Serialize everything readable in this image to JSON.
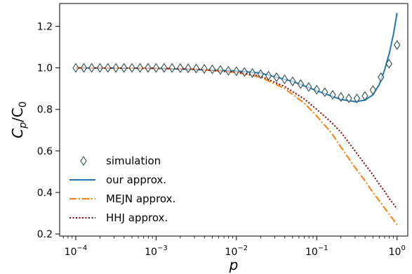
{
  "chart_data": {
    "type": "line",
    "xscale": "log",
    "xlim": [
      6.3e-05,
      1.36
    ],
    "ylim": [
      0.19,
      1.31
    ],
    "xlabel": "p",
    "ylabel_main": "C",
    "ylabel_sub1": "p",
    "ylabel_mid": "/C",
    "ylabel_sub2": "0",
    "x_ticks": [
      {
        "value": 0.0001,
        "base": "10",
        "exp": "−4"
      },
      {
        "value": 0.001,
        "base": "10",
        "exp": "−3"
      },
      {
        "value": 0.01,
        "base": "10",
        "exp": "−2"
      },
      {
        "value": 0.1,
        "base": "10",
        "exp": "−1"
      },
      {
        "value": 1,
        "base": "10",
        "exp": "0"
      }
    ],
    "y_ticks": [
      {
        "value": 0.2,
        "label": "0.2"
      },
      {
        "value": 0.4,
        "label": "0.4"
      },
      {
        "value": 0.6,
        "label": "0.6"
      },
      {
        "value": 0.8,
        "label": "0.8"
      },
      {
        "value": 1.0,
        "label": "1.0"
      },
      {
        "value": 1.2,
        "label": "1.2"
      }
    ],
    "legend_position": "lower-left",
    "series": [
      {
        "name": "simulation",
        "style": "diamond-markers",
        "color": "#2f4f4f",
        "x": [
          0.0001,
          0.000126,
          0.000158,
          0.0002,
          0.000251,
          0.000316,
          0.000398,
          0.000501,
          0.000631,
          0.000794,
          0.001,
          0.00126,
          0.00158,
          0.002,
          0.00251,
          0.00316,
          0.00398,
          0.00501,
          0.00631,
          0.00794,
          0.01,
          0.0126,
          0.0158,
          0.02,
          0.0251,
          0.0316,
          0.0398,
          0.0501,
          0.0631,
          0.0794,
          0.1,
          0.126,
          0.158,
          0.2,
          0.251,
          0.316,
          0.398,
          0.501,
          0.631,
          0.794,
          1.0
        ],
        "y": [
          1.0,
          1.0,
          1.0,
          1.0,
          1.0,
          1.0,
          1.0,
          1.0,
          1.0,
          1.0,
          1.0,
          1.0,
          1.0,
          0.999,
          0.998,
          0.997,
          0.995,
          0.993,
          0.99,
          0.986,
          0.984,
          0.98,
          0.975,
          0.97,
          0.962,
          0.955,
          0.945,
          0.935,
          0.922,
          0.908,
          0.895,
          0.883,
          0.87,
          0.86,
          0.853,
          0.853,
          0.865,
          0.893,
          0.955,
          1.02,
          1.11
        ]
      },
      {
        "name": "our approx.",
        "style": "solid",
        "color": "#1f77b4",
        "x": [
          0.0001,
          0.001,
          0.01,
          0.02,
          0.05,
          0.1,
          0.2,
          0.3,
          0.4,
          0.5,
          0.6,
          0.7,
          0.8,
          0.9,
          1.0
        ],
        "y": [
          1.0,
          0.998,
          0.985,
          0.975,
          0.935,
          0.89,
          0.848,
          0.837,
          0.845,
          0.87,
          0.92,
          0.99,
          1.07,
          1.16,
          1.265
        ]
      },
      {
        "name": "MEJN approx.",
        "style": "dashdot",
        "color": "#ff7f0e",
        "x": [
          0.0001,
          0.001,
          0.003,
          0.01,
          0.02,
          0.04,
          0.07,
          0.1,
          0.15,
          0.2,
          0.3,
          0.4,
          0.5,
          0.6,
          0.7,
          0.8,
          0.9,
          1.0
        ],
        "y": [
          1.0,
          0.998,
          0.994,
          0.978,
          0.955,
          0.9,
          0.83,
          0.768,
          0.69,
          0.618,
          0.52,
          0.455,
          0.4,
          0.36,
          0.325,
          0.295,
          0.268,
          0.245
        ]
      },
      {
        "name": "HHJ approx.",
        "style": "dotted",
        "color": "#8b0000",
        "x": [
          0.0001,
          0.001,
          0.003,
          0.01,
          0.02,
          0.04,
          0.07,
          0.1,
          0.15,
          0.2,
          0.3,
          0.4,
          0.5,
          0.6,
          0.7,
          0.8,
          0.9,
          1.0
        ],
        "y": [
          1.0,
          0.998,
          0.994,
          0.98,
          0.96,
          0.91,
          0.85,
          0.8,
          0.74,
          0.69,
          0.6,
          0.535,
          0.485,
          0.44,
          0.405,
          0.37,
          0.345,
          0.32
        ]
      }
    ]
  }
}
